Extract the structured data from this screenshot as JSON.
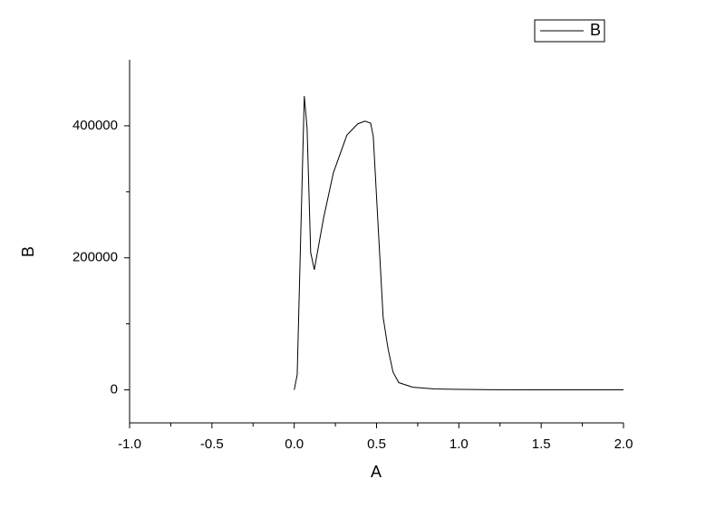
{
  "chart_data": {
    "type": "line",
    "xlabel": "A",
    "ylabel": "B",
    "x": [
      0,
      0.018,
      0.061,
      0.078,
      0.1,
      0.122,
      0.178,
      0.238,
      0.32,
      0.386,
      0.43,
      0.464,
      0.48,
      0.513,
      0.54,
      0.57,
      0.6,
      0.635,
      0.72,
      0.85,
      1.0,
      1.2,
      1.5,
      2.0
    ],
    "series": [
      {
        "name": "B",
        "color": "#000000",
        "values": [
          0,
          23000,
          445000,
          397000,
          208000,
          182000,
          260000,
          329000,
          386000,
          403000,
          407000,
          404000,
          384000,
          233000,
          110000,
          62000,
          27000,
          11000,
          4000,
          1500,
          700,
          300,
          100,
          0
        ]
      }
    ],
    "xlim": [
      -1,
      2
    ],
    "xticks": [
      {
        "value": -1,
        "label": "-1.0"
      },
      -0.5,
      {
        "value": 0,
        "label": "0.0"
      },
      0.5,
      {
        "value": 1,
        "label": "1.0"
      },
      1.5,
      {
        "value": 2,
        "label": "2.0"
      }
    ],
    "xminorticks": [
      -0.75,
      -0.25,
      0.25,
      0.75,
      1.25,
      1.75
    ],
    "ylim": [
      -50000,
      500000
    ],
    "yticks": [
      0,
      200000,
      400000
    ],
    "yminorticks": [
      100000,
      300000
    ],
    "grid": false,
    "legend": "upper right"
  }
}
